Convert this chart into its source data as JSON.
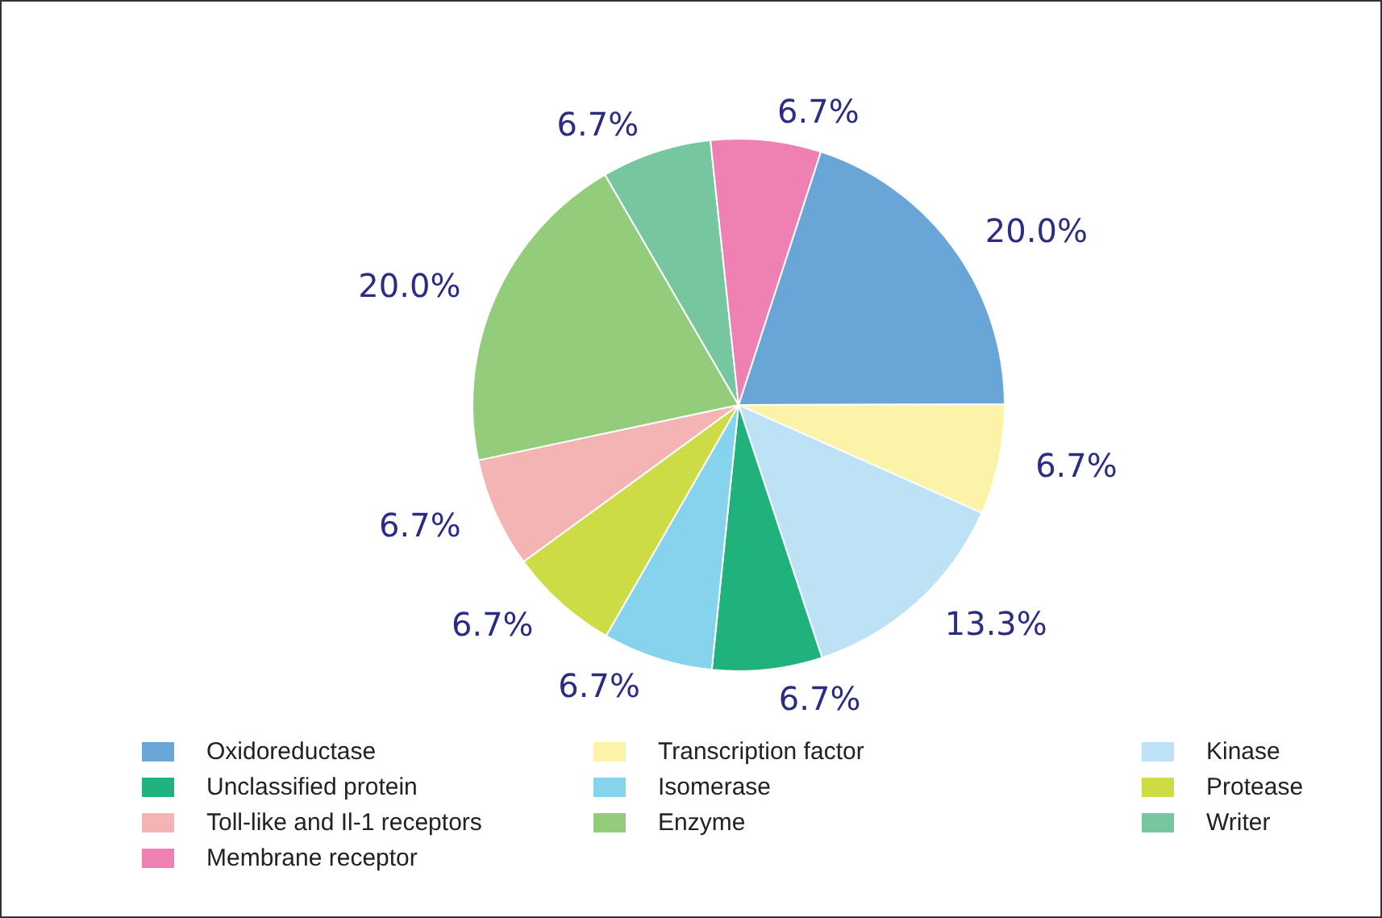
{
  "chart_data": {
    "type": "pie",
    "categories": [
      "Oxidoreductase",
      "Transcription factor",
      "Kinase",
      "Unclassified protein",
      "Isomerase",
      "Protease",
      "Toll-like and Il-1 receptors",
      "Enzyme",
      "Writer",
      "Membrane receptor"
    ],
    "values": [
      20.0,
      6.7,
      13.3,
      6.7,
      6.7,
      6.7,
      6.7,
      20.0,
      6.7,
      6.7
    ],
    "value_labels": [
      "20.0%",
      "6.7%",
      "13.3%",
      "6.7%",
      "6.7%",
      "6.7%",
      "6.7%",
      "20.0%",
      "6.7%",
      "6.7%"
    ],
    "colors": [
      "#6aa5d8",
      "#fbf3a8",
      "#bde2f5",
      "#20b27c",
      "#86d3ee",
      "#cddb44",
      "#f4b4b4",
      "#93cc7a",
      "#76c7a0",
      "#ee80b3"
    ],
    "legend": "bottom"
  }
}
